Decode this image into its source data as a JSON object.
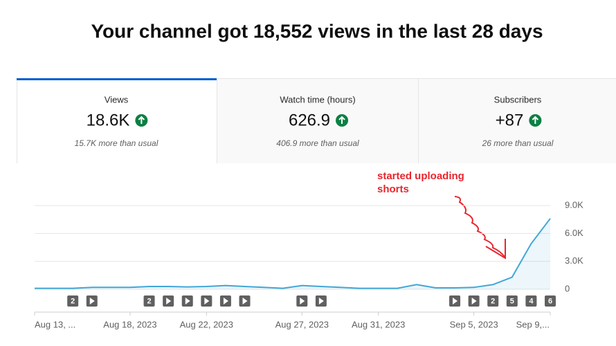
{
  "header": {
    "title": "Your channel got 18,552 views in the last 28 days"
  },
  "tabs": [
    {
      "label": "Views",
      "value": "18.6K",
      "note": "15.7K more than usual"
    },
    {
      "label": "Watch time (hours)",
      "value": "626.9",
      "note": "406.9 more than usual"
    },
    {
      "label": "Subscribers",
      "value": "+87",
      "note": "26 more than usual"
    }
  ],
  "chart_data": {
    "type": "area",
    "annotation": [
      "started uploading",
      "shorts"
    ],
    "categories": [
      "Aug 13, ...",
      null,
      null,
      null,
      null,
      "Aug 18, 2023",
      null,
      null,
      null,
      "Aug 22, 2023",
      null,
      null,
      null,
      null,
      "Aug 27, 2023",
      null,
      null,
      null,
      "Aug 31, 2023",
      null,
      null,
      null,
      null,
      "Sep 5, 2023",
      null,
      null,
      null,
      "Sep 9,..."
    ],
    "series": [
      {
        "name": "Views",
        "color": "#41a6d6",
        "values": [
          100,
          100,
          100,
          200,
          200,
          200,
          300,
          300,
          250,
          300,
          400,
          300,
          200,
          100,
          400,
          300,
          200,
          100,
          100,
          100,
          500,
          150,
          150,
          200,
          500,
          1300,
          4900,
          7600
        ]
      }
    ],
    "video_counts": [
      0,
      0,
      2,
      1,
      0,
      0,
      2,
      1,
      1,
      1,
      1,
      1,
      0,
      0,
      1,
      1,
      0,
      0,
      0,
      0,
      0,
      0,
      1,
      1,
      2,
      5,
      4,
      6
    ],
    "ylim": [
      0,
      9000
    ],
    "yticks": [
      {
        "value": 0,
        "label": "0"
      },
      {
        "value": 3000,
        "label": "3.0K"
      },
      {
        "value": 6000,
        "label": "6.0K"
      },
      {
        "value": 9000,
        "label": "9.0K"
      }
    ],
    "grid": true
  }
}
